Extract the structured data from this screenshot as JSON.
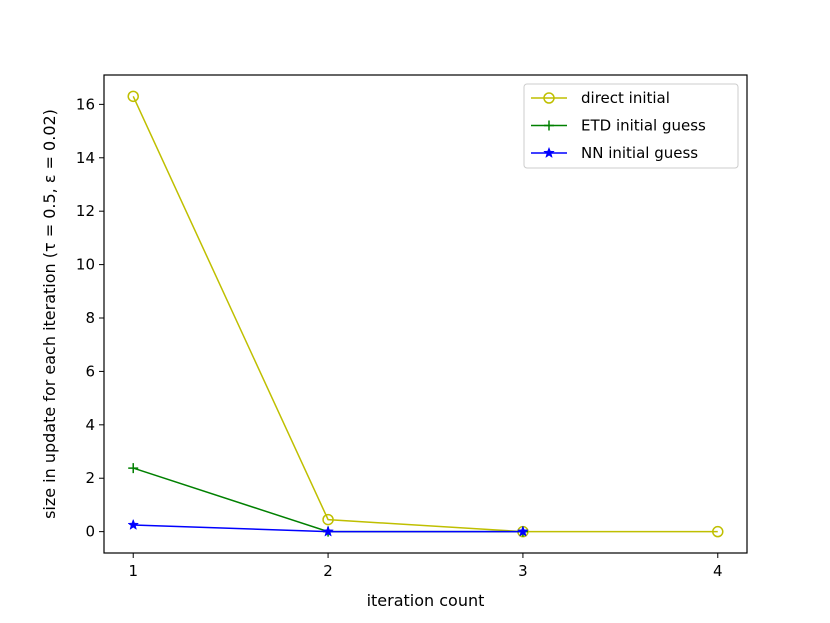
{
  "chart_data": {
    "type": "line",
    "title": "",
    "xlabel": "iteration count",
    "ylabel": "size in update for each iteration (τ = 0.5, ε = 0.02)",
    "xlim": [
      0.85,
      4.15
    ],
    "ylim": [
      -0.8,
      17.1
    ],
    "x_ticks": [
      1,
      2,
      3,
      4
    ],
    "y_ticks": [
      0,
      2,
      4,
      6,
      8,
      10,
      12,
      14,
      16
    ],
    "grid": false,
    "legend_position": "upper right",
    "series": [
      {
        "name": "direct initial",
        "color": "#bfbf00",
        "marker": "circle-open",
        "x": [
          1,
          2,
          3,
          4
        ],
        "y": [
          16.3,
          0.45,
          0.0,
          0.0
        ]
      },
      {
        "name": "ETD initial guess",
        "color": "#008000",
        "marker": "plus",
        "x": [
          1,
          2,
          3
        ],
        "y": [
          2.38,
          0.0,
          0.0
        ]
      },
      {
        "name": "NN initial guess",
        "color": "#0000ff",
        "marker": "star",
        "x": [
          1,
          2,
          3
        ],
        "y": [
          0.25,
          0.0,
          0.0
        ]
      }
    ]
  }
}
